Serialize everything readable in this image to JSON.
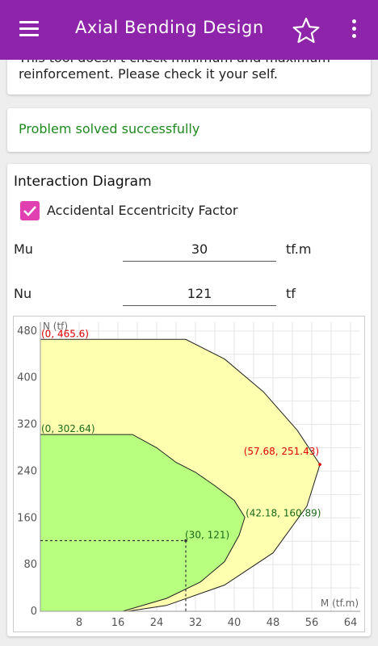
{
  "appbar": {
    "title": "Axial Bending Design",
    "bg": "#8e24aa"
  },
  "notice": {
    "line1": "This tool doesn't check minimum and maximum",
    "line2": "reinforcement. Please check it your self."
  },
  "status": {
    "text": "Problem solved successfully",
    "color": "#1e8a1e"
  },
  "diagram": {
    "title": "Interaction Diagram",
    "checkbox_label": "Accidental Eccentricity Factor",
    "checkbox_checked": true,
    "mu": {
      "label": "Mu",
      "value": "30",
      "unit": "tf.m"
    },
    "nu": {
      "label": "Nu",
      "value": "121",
      "unit": "tf"
    }
  },
  "chart_data": {
    "type": "area",
    "xlabel": "M (tf.m)",
    "ylabel": "N (tf)",
    "xlim": [
      0,
      66
    ],
    "ylim": [
      0,
      495
    ],
    "x_ticks": [
      8,
      16,
      24,
      32,
      40,
      48,
      56,
      64
    ],
    "y_ticks": [
      0,
      80,
      160,
      240,
      320,
      400,
      480
    ],
    "grid": true,
    "series": [
      {
        "color": "#ffffb0",
        "points": [
          [
            0,
            465.6
          ],
          [
            30,
            465.6
          ],
          [
            38,
            432
          ],
          [
            46,
            376
          ],
          [
            53,
            310
          ],
          [
            57.68,
            251.43
          ],
          [
            55,
            180
          ],
          [
            48,
            100
          ],
          [
            38,
            45
          ],
          [
            26,
            10
          ],
          [
            18,
            0
          ],
          [
            0,
            0
          ]
        ]
      },
      {
        "color": "#b8ff80",
        "points": [
          [
            0,
            302.64
          ],
          [
            19,
            302.64
          ],
          [
            24,
            280
          ],
          [
            28,
            255
          ],
          [
            32,
            238
          ],
          [
            36,
            215
          ],
          [
            40,
            190
          ],
          [
            42.18,
            160.89
          ],
          [
            41,
            130
          ],
          [
            38,
            85
          ],
          [
            33,
            50
          ],
          [
            26,
            22
          ],
          [
            17,
            0
          ],
          [
            0,
            0
          ]
        ]
      }
    ],
    "labels": [
      {
        "text": "(0, 465.6)",
        "x": 0,
        "y": 465.6,
        "color": "#dd0000"
      },
      {
        "text": "(0, 302.64)",
        "x": 0,
        "y": 302.64,
        "color": "#1a6a1a"
      },
      {
        "text": "(57.68, 251.43)",
        "x": 57.68,
        "y": 251.43,
        "color": "#dd0000"
      },
      {
        "text": "(42.18, 160.89)",
        "x": 42.18,
        "y": 160.89,
        "color": "#1a6a1a"
      },
      {
        "text": "(30, 121)",
        "x": 30,
        "y": 121,
        "color": "#1a6a1a"
      }
    ],
    "design_point": {
      "x": 30,
      "y": 121
    }
  }
}
